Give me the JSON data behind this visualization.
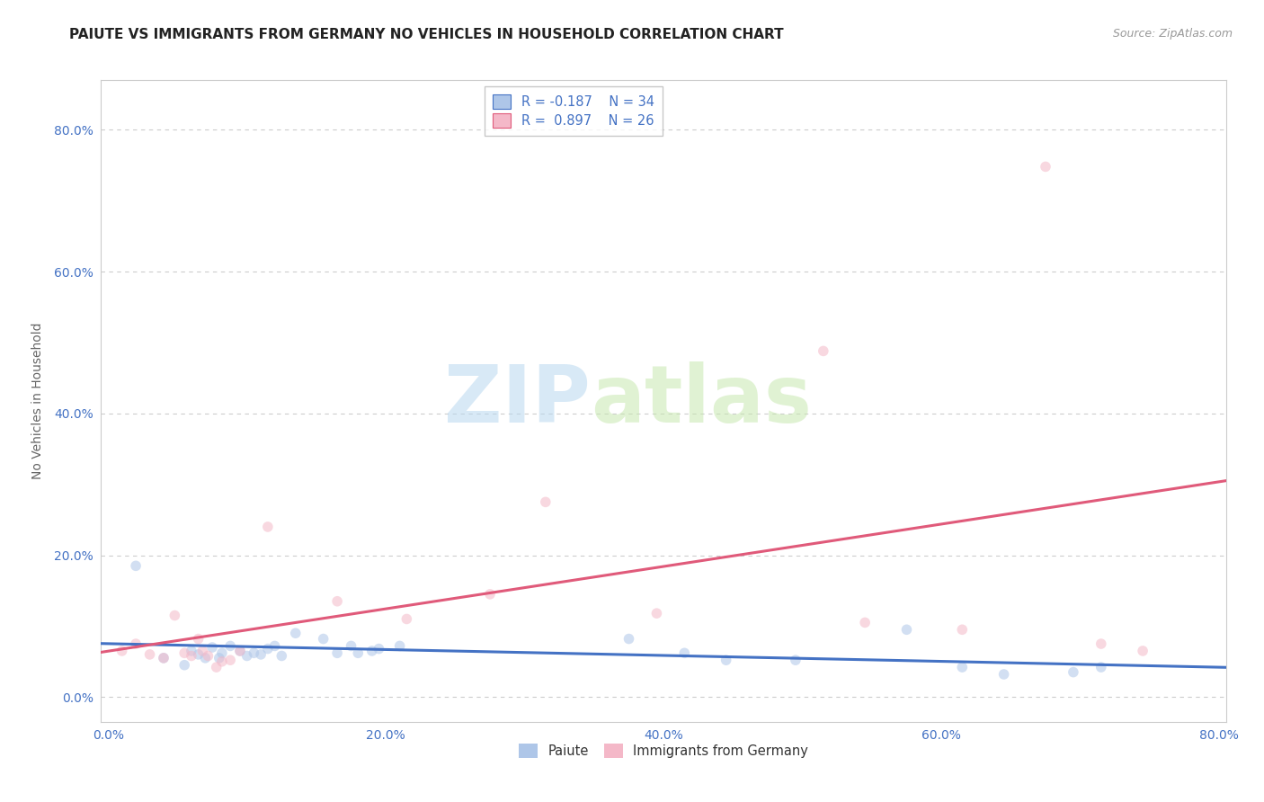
{
  "title": "PAIUTE VS IMMIGRANTS FROM GERMANY NO VEHICLES IN HOUSEHOLD CORRELATION CHART",
  "source_text": "Source: ZipAtlas.com",
  "ylabel": "No Vehicles in Household",
  "watermark_zip": "ZIP",
  "watermark_atlas": "atlas",
  "legend_entries": [
    {
      "label": "Paiute",
      "R": "-0.187",
      "N": "34",
      "color": "#aec6e8",
      "line_color": "#4472c4"
    },
    {
      "label": "Immigrants from Germany",
      "R": "0.897",
      "N": "26",
      "color": "#f4b8c8",
      "line_color": "#e05a7a"
    }
  ],
  "xlim": [
    -0.005,
    0.805
  ],
  "ylim": [
    -0.035,
    0.87
  ],
  "x_ticks": [
    0.0,
    0.2,
    0.4,
    0.6,
    0.8
  ],
  "x_tick_labels": [
    "0.0%",
    "20.0%",
    "40.0%",
    "60.0%",
    "80.0%"
  ],
  "y_ticks": [
    0.0,
    0.2,
    0.4,
    0.6,
    0.8
  ],
  "y_tick_labels": [
    "0.0%",
    "20.0%",
    "40.0%",
    "60.0%",
    "80.0%"
  ],
  "paiute_x": [
    0.02,
    0.04,
    0.055,
    0.06,
    0.065,
    0.07,
    0.075,
    0.08,
    0.082,
    0.088,
    0.095,
    0.1,
    0.105,
    0.11,
    0.115,
    0.12,
    0.125,
    0.135,
    0.155,
    0.165,
    0.175,
    0.18,
    0.19,
    0.195,
    0.21,
    0.375,
    0.415,
    0.445,
    0.495,
    0.575,
    0.615,
    0.645,
    0.695,
    0.715
  ],
  "paiute_y": [
    0.185,
    0.055,
    0.045,
    0.065,
    0.06,
    0.055,
    0.07,
    0.055,
    0.062,
    0.072,
    0.065,
    0.058,
    0.062,
    0.06,
    0.068,
    0.072,
    0.058,
    0.09,
    0.082,
    0.062,
    0.072,
    0.062,
    0.065,
    0.068,
    0.072,
    0.082,
    0.062,
    0.052,
    0.052,
    0.095,
    0.042,
    0.032,
    0.035,
    0.042
  ],
  "germany_x": [
    0.01,
    0.02,
    0.03,
    0.04,
    0.048,
    0.055,
    0.06,
    0.065,
    0.068,
    0.072,
    0.078,
    0.082,
    0.088,
    0.095,
    0.115,
    0.165,
    0.215,
    0.275,
    0.315,
    0.395,
    0.515,
    0.545,
    0.615,
    0.675,
    0.715,
    0.745
  ],
  "germany_y": [
    0.065,
    0.075,
    0.06,
    0.055,
    0.115,
    0.062,
    0.058,
    0.082,
    0.065,
    0.058,
    0.042,
    0.05,
    0.052,
    0.065,
    0.24,
    0.135,
    0.11,
    0.145,
    0.275,
    0.118,
    0.488,
    0.105,
    0.095,
    0.748,
    0.075,
    0.065
  ],
  "background_color": "#ffffff",
  "grid_color": "#cccccc",
  "tick_color": "#4472c4",
  "axis_color": "#cccccc",
  "title_fontsize": 11,
  "source_fontsize": 9,
  "label_fontsize": 10,
  "tick_fontsize": 10,
  "scatter_size": 70,
  "scatter_alpha": 0.55,
  "line_width": 2.2
}
